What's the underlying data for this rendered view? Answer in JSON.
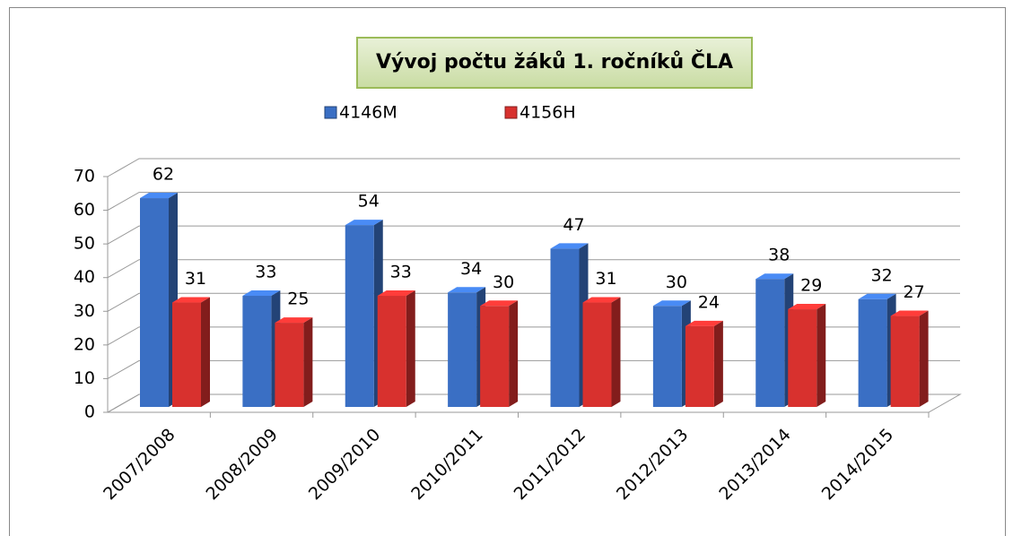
{
  "chart_data": {
    "type": "bar3d",
    "title": "Vývoj počtu žáků 1. ročníků ČLA",
    "categories": [
      "2007/2008",
      "2008/2009",
      "2009/2010",
      "2010/2011",
      "2011/2012",
      "2012/2013",
      "2013/2014",
      "2014/2015"
    ],
    "series": [
      {
        "name": "4146M",
        "color": "#3a6fc4",
        "values": [
          62,
          33,
          54,
          34,
          47,
          30,
          38,
          32
        ]
      },
      {
        "name": "4156H",
        "color": "#d8312e",
        "values": [
          31,
          25,
          33,
          30,
          31,
          24,
          29,
          27
        ]
      }
    ],
    "ylim": [
      0,
      70
    ],
    "yticks": [
      0,
      10,
      20,
      30,
      40,
      50,
      60,
      70
    ],
    "grid": true,
    "legend": "top"
  }
}
